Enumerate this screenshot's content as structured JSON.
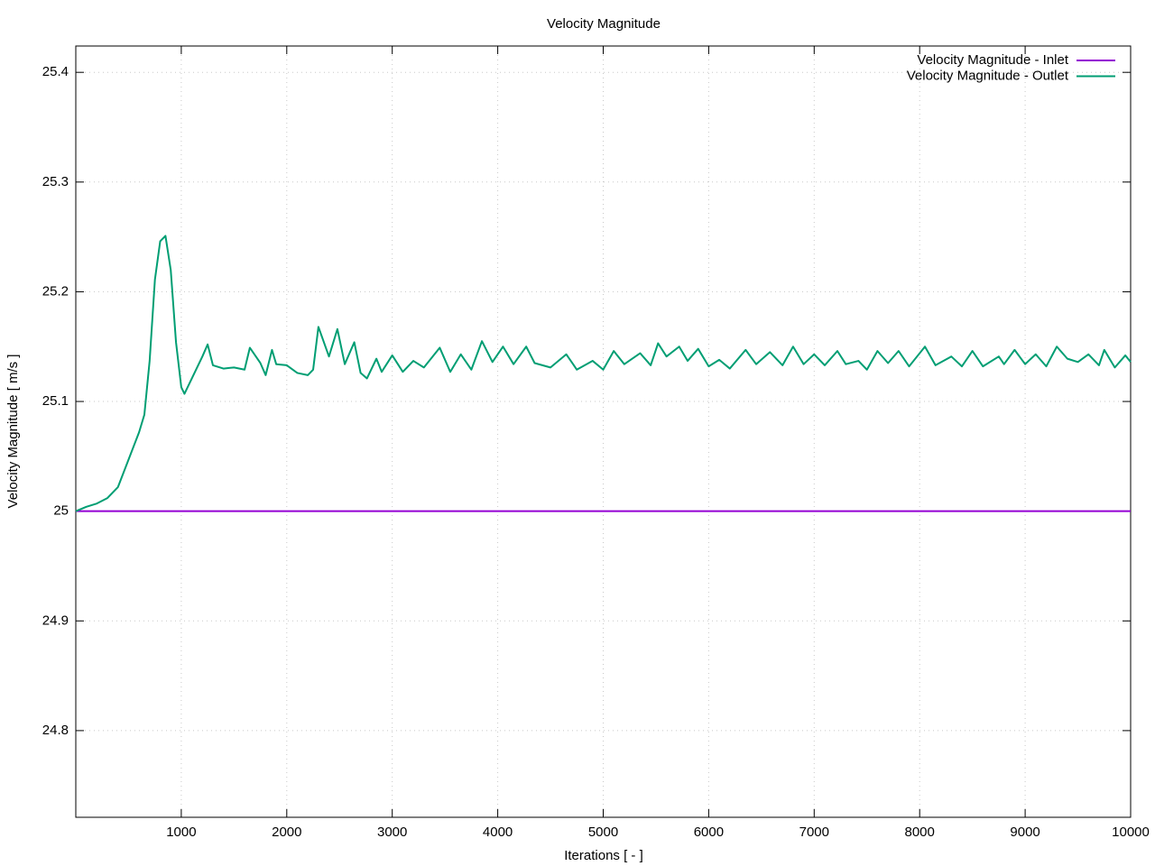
{
  "chart_data": {
    "type": "line",
    "title": "Velocity Magnitude",
    "x_label": "Iterations [ - ]",
    "y_label": "Velocity Magnitude [ m/s ]",
    "xlim": [
      0,
      10000
    ],
    "xticks": [
      1000,
      2000,
      3000,
      4000,
      5000,
      6000,
      7000,
      8000,
      9000,
      10000
    ],
    "ylim": [
      24.721,
      25.424
    ],
    "yticks": [
      24.8,
      24.9,
      25,
      25.1,
      25.2,
      25.3,
      25.4
    ],
    "grid": true,
    "legend": "top-right",
    "series": [
      {
        "name": "Velocity Magnitude - Inlet",
        "color": "#9400d3",
        "x": [
          0,
          10000
        ],
        "values": [
          25,
          25
        ]
      },
      {
        "name": "Velocity Magnitude - Outlet",
        "color": "#009e73",
        "x": [
          0,
          100,
          200,
          300,
          400,
          500,
          600,
          650,
          700,
          750,
          800,
          850,
          900,
          950,
          1000,
          1030,
          1100,
          1200,
          1250,
          1300,
          1400,
          1500,
          1600,
          1650,
          1750,
          1800,
          1860,
          1900,
          2000,
          2100,
          2200,
          2250,
          2300,
          2400,
          2480,
          2550,
          2640,
          2700,
          2760,
          2850,
          2900,
          3000,
          3100,
          3200,
          3300,
          3450,
          3550,
          3650,
          3750,
          3850,
          3950,
          4050,
          4150,
          4270,
          4350,
          4500,
          4650,
          4750,
          4900,
          5000,
          5100,
          5200,
          5350,
          5450,
          5520,
          5600,
          5720,
          5800,
          5900,
          6000,
          6100,
          6200,
          6350,
          6450,
          6580,
          6700,
          6800,
          6900,
          7000,
          7100,
          7220,
          7300,
          7420,
          7500,
          7600,
          7700,
          7800,
          7900,
          8050,
          8150,
          8300,
          8400,
          8500,
          8600,
          8750,
          8800,
          8900,
          9000,
          9100,
          9200,
          9300,
          9400,
          9500,
          9600,
          9700,
          9750,
          9850,
          9950,
          10000
        ],
        "values": [
          25.0,
          25.004,
          25.007,
          25.012,
          25.022,
          25.047,
          25.072,
          25.088,
          25.137,
          25.211,
          25.246,
          25.251,
          25.22,
          25.154,
          25.113,
          25.107,
          25.121,
          25.141,
          25.152,
          25.133,
          25.13,
          25.131,
          25.129,
          25.149,
          25.135,
          25.124,
          25.147,
          25.134,
          25.133,
          25.126,
          25.124,
          25.129,
          25.168,
          25.141,
          25.166,
          25.134,
          25.154,
          25.126,
          25.121,
          25.139,
          25.127,
          25.142,
          25.127,
          25.137,
          25.131,
          25.149,
          25.127,
          25.143,
          25.129,
          25.155,
          25.136,
          25.15,
          25.134,
          25.15,
          25.135,
          25.131,
          25.143,
          25.129,
          25.137,
          25.129,
          25.146,
          25.134,
          25.144,
          25.133,
          25.153,
          25.141,
          25.15,
          25.137,
          25.148,
          25.132,
          25.138,
          25.13,
          25.147,
          25.134,
          25.145,
          25.133,
          25.15,
          25.134,
          25.143,
          25.133,
          25.146,
          25.134,
          25.137,
          25.129,
          25.146,
          25.135,
          25.146,
          25.132,
          25.15,
          25.133,
          25.141,
          25.132,
          25.146,
          25.132,
          25.141,
          25.134,
          25.147,
          25.134,
          25.143,
          25.132,
          25.15,
          25.139,
          25.136,
          25.143,
          25.133,
          25.147,
          25.131,
          25.142,
          25.136
        ]
      }
    ]
  }
}
